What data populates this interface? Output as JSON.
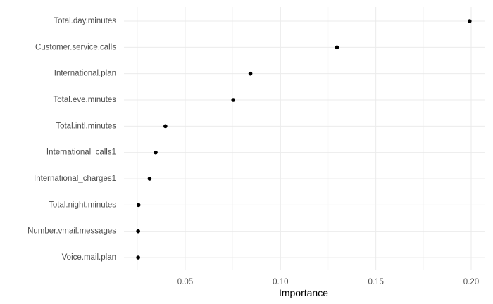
{
  "chart_data": {
    "type": "scatter",
    "xlabel": "Importance",
    "ylabel": "",
    "title": "",
    "xlim": [
      0.0,
      0.2
    ],
    "x_ticks": [
      0.05,
      0.1,
      0.15,
      0.2
    ],
    "x_tick_labels": [
      "0.05",
      "0.10",
      "0.15",
      "0.20"
    ],
    "grid": true,
    "legend": "none",
    "point_color": "#000000",
    "categories": [
      "Total.day.minutes",
      "Customer.service.calls",
      "International.plan",
      "Total.eve.minutes",
      "Total.intl.minutes",
      "International_calls1",
      "International_charges1",
      "Total.night.minutes",
      "Number.vmail.messages",
      "Voice.mail.plan"
    ],
    "values": [
      0.1992,
      0.1296,
      0.0842,
      0.0752,
      0.0396,
      0.0345,
      0.0313,
      0.0255,
      0.0253,
      0.0253
    ]
  }
}
